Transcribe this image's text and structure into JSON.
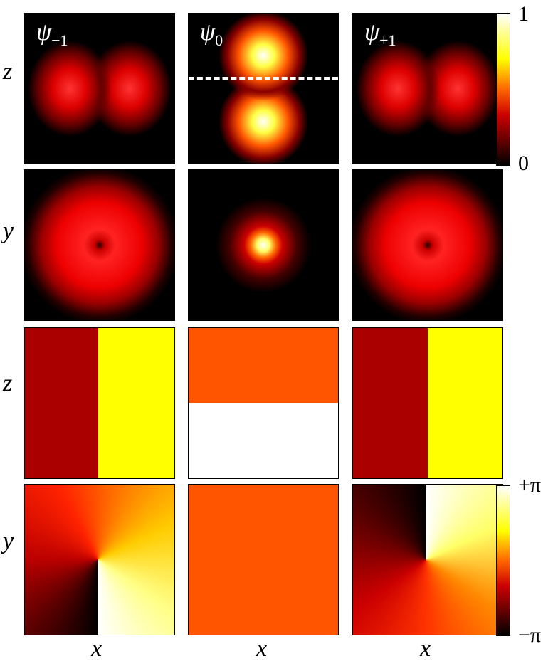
{
  "columns": [
    {
      "symbol": "ψ",
      "subscript": "−1"
    },
    {
      "symbol": "ψ",
      "subscript": "0"
    },
    {
      "symbol": "ψ",
      "subscript": "+1"
    }
  ],
  "row_labels": [
    "z",
    "y",
    "z",
    "y"
  ],
  "x_labels": [
    "x",
    "x",
    "x"
  ],
  "amplitude_colorbar": {
    "ticks": [
      0,
      1
    ]
  },
  "phase_colorbar": {
    "ticks": [
      {
        "value": 3.1416,
        "label": "+π"
      },
      {
        "value": -3.1416,
        "label": "−π"
      }
    ]
  }
}
